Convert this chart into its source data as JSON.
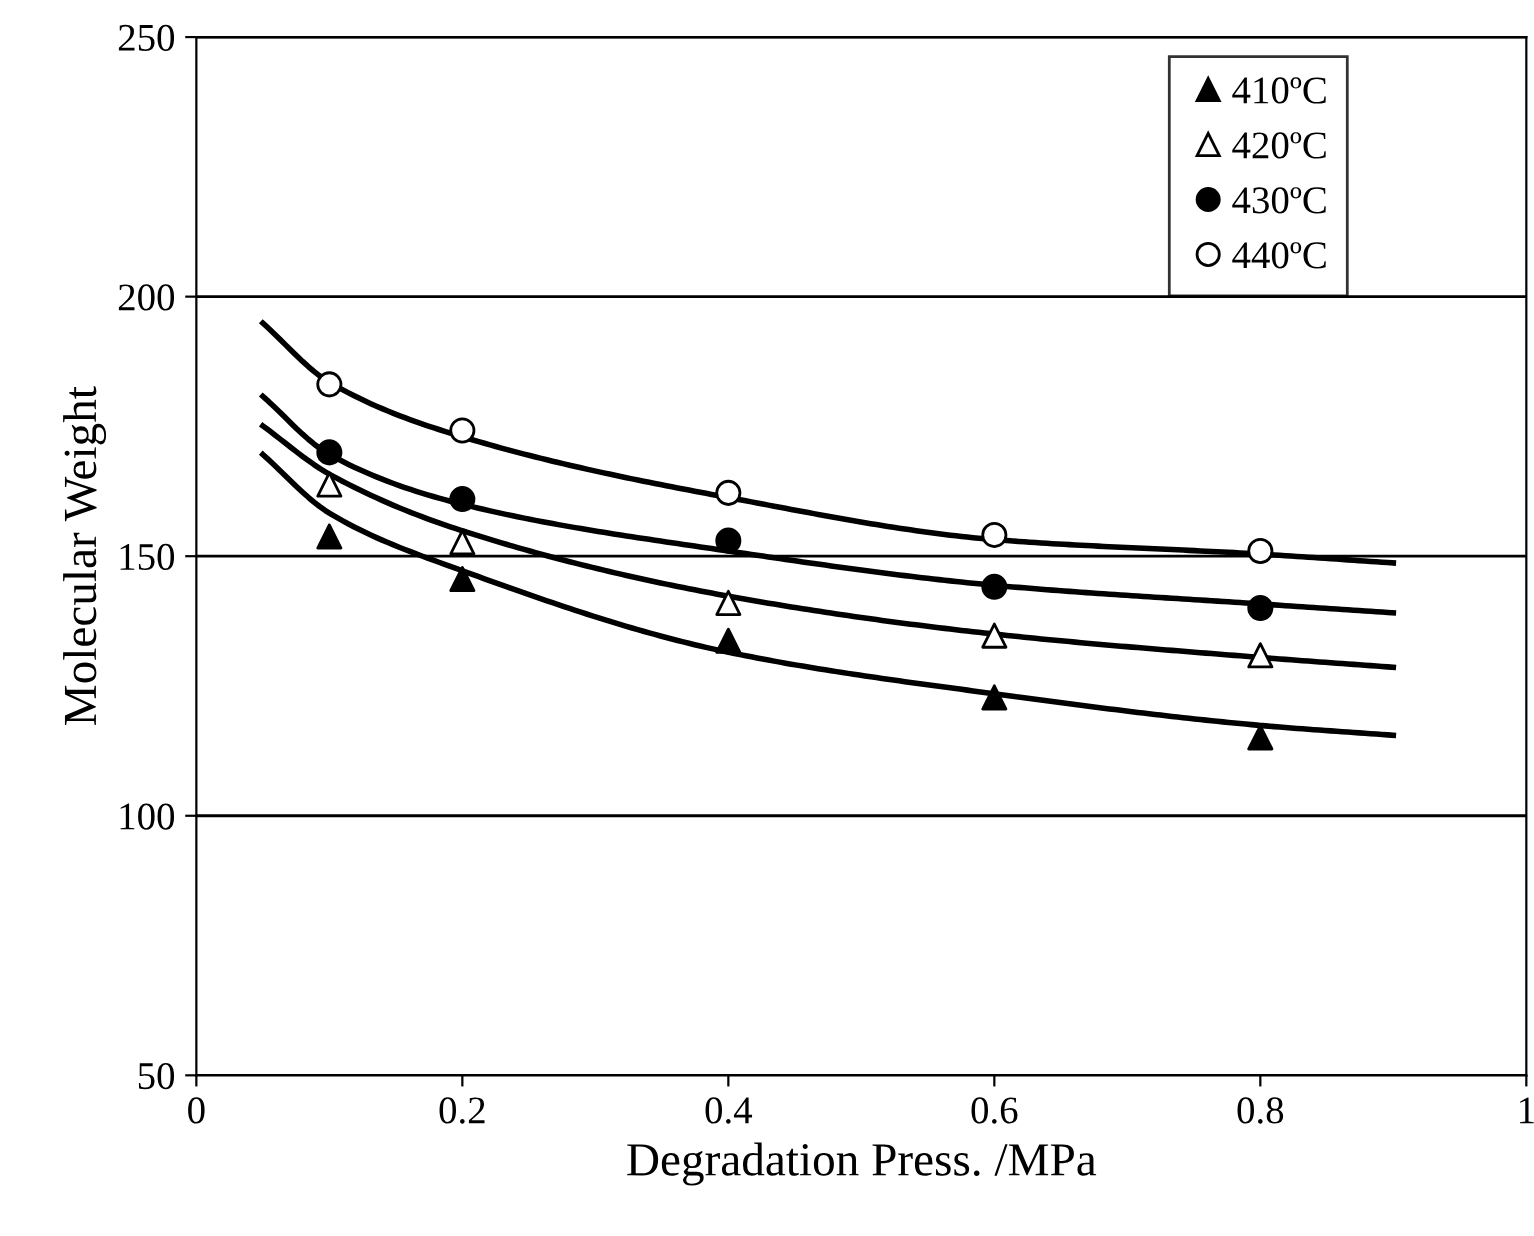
{
  "chart_data": {
    "type": "scatter",
    "xlabel": "Degradation Press. /MPa",
    "ylabel": "Molecular Weight",
    "xlim": [
      0,
      1
    ],
    "xticks": [
      0,
      0.2,
      0.4,
      0.6,
      0.8,
      1
    ],
    "ylim": [
      50,
      250
    ],
    "yticks": [
      50,
      100,
      150,
      200,
      250
    ],
    "grid": "y",
    "legend": "top right",
    "series": [
      {
        "name": "410ºC",
        "color": "#000000",
        "marker": "triangle",
        "x": [
          0.1,
          0.2,
          0.4,
          0.6,
          0.8
        ],
        "values": [
          153.8,
          145.6,
          133.7,
          122.8,
          115.1
        ]
      },
      {
        "name": "420ºC",
        "color": "#ffffff",
        "marker": "triangle",
        "x": [
          0.1,
          0.2,
          0.4,
          0.6,
          0.8
        ],
        "values": [
          163.8,
          152.7,
          141,
          134.7,
          130.9
        ]
      },
      {
        "name": "430ºC",
        "color": "#000000",
        "marker": "circle",
        "x": [
          0.1,
          0.2,
          0.4,
          0.6,
          0.8
        ],
        "values": [
          170,
          161,
          153,
          144.1,
          140
        ]
      },
      {
        "name": "440ºC",
        "color": "#ffffff",
        "marker": "circle",
        "x": [
          0.1,
          0.2,
          0.4,
          0.6,
          0.8
        ],
        "values": [
          183.1,
          174.2,
          162.2,
          154.1,
          151
        ]
      },
      {
        "type": "line",
        "color": "#000000",
        "marker": "none",
        "x": [
          0.05,
          0.1,
          0.2,
          0.4,
          0.6,
          0.8,
          0.9
        ],
        "values": [
          169.6,
          158.3,
          147.2,
          131.5,
          123.5,
          117.4,
          115.5
        ]
      },
      {
        "type": "line",
        "color": "#000000",
        "marker": "none",
        "x": [
          0.05,
          0.1,
          0.2,
          0.4,
          0.6,
          0.8,
          0.9
        ],
        "values": [
          175.1,
          165.8,
          154.9,
          142.3,
          135,
          130.5,
          128.6
        ]
      },
      {
        "type": "line",
        "color": "#000000",
        "marker": "none",
        "x": [
          0.05,
          0.1,
          0.2,
          0.4,
          0.6,
          0.8,
          0.9
        ],
        "values": [
          180.8,
          169.6,
          160,
          151,
          144.4,
          140.8,
          139.1
        ]
      },
      {
        "type": "line",
        "color": "#000000",
        "marker": "none",
        "x": [
          0.05,
          0.1,
          0.2,
          0.4,
          0.6,
          0.8,
          0.9
        ],
        "values": [
          194.9,
          183.5,
          173,
          161.3,
          153.2,
          150.4,
          148.7
        ]
      }
    ]
  }
}
